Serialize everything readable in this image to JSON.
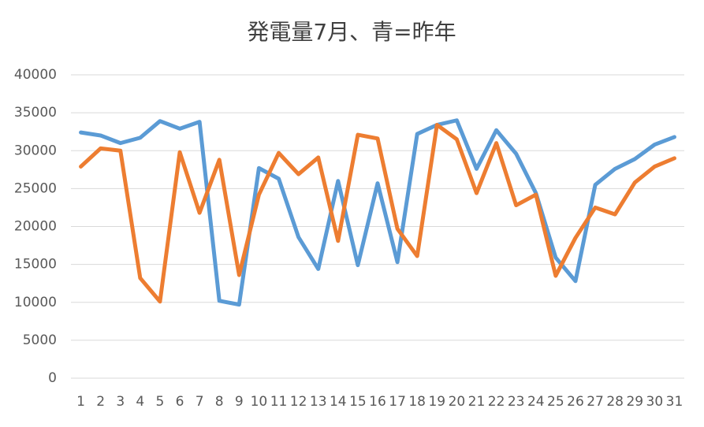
{
  "chart_data": {
    "type": "line",
    "title": "発電量7月、青=昨年",
    "categories": [
      "1",
      "2",
      "3",
      "4",
      "5",
      "6",
      "7",
      "8",
      "9",
      "10",
      "11",
      "12",
      "13",
      "14",
      "15",
      "16",
      "17",
      "18",
      "19",
      "20",
      "21",
      "22",
      "23",
      "24",
      "25",
      "26",
      "27",
      "28",
      "29",
      "30",
      "31"
    ],
    "series": [
      {
        "color": "#5b9bd5",
        "values": [
          32400,
          32000,
          31000,
          31700,
          33900,
          32900,
          33800,
          10200,
          9700,
          27700,
          26300,
          18600,
          14400,
          26000,
          14900,
          25700,
          15300,
          32200,
          33400,
          34000,
          27600,
          32700,
          29600,
          24400,
          15900,
          12800,
          25500,
          27600,
          28900,
          30800,
          31800
        ]
      },
      {
        "color": "#ed7d31",
        "values": [
          27900,
          30300,
          30000,
          13200,
          10100,
          29800,
          21800,
          28800,
          13600,
          24200,
          29700,
          26900,
          29100,
          18100,
          32100,
          31600,
          19700,
          16100,
          33400,
          31500,
          24400,
          31000,
          22800,
          24200,
          13500,
          18500,
          22500,
          21600,
          25800,
          27900,
          29000
        ]
      }
    ],
    "ylim": [
      0,
      40000
    ],
    "yticks": [
      0,
      5000,
      10000,
      15000,
      20000,
      25000,
      30000,
      35000,
      40000
    ],
    "grid": true
  }
}
